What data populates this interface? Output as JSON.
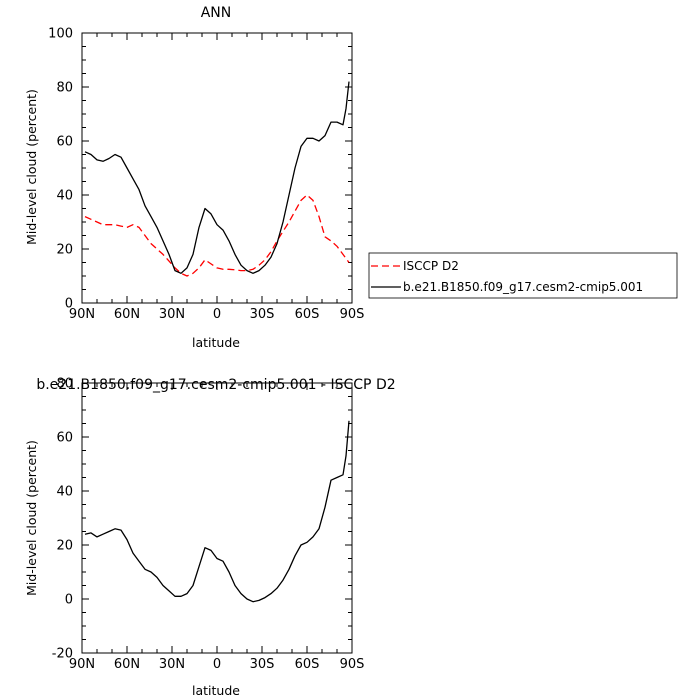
{
  "chart_data": [
    {
      "type": "line",
      "title": "ANN",
      "xlabel": "latitude",
      "ylabel": "Mid-level cloud (percent)",
      "xlim": [
        90,
        -90
      ],
      "ylim": [
        0,
        100
      ],
      "x_ticks": [
        90,
        60,
        30,
        0,
        -30,
        -60,
        -90
      ],
      "x_tick_labels": [
        "90N",
        "60N",
        "30N",
        "0",
        "30S",
        "60S",
        "90S"
      ],
      "y_ticks": [
        0,
        20,
        40,
        60,
        80,
        100
      ],
      "y_tick_labels": [
        "0",
        "20",
        "40",
        "60",
        "80",
        "100"
      ],
      "legend_position": "right",
      "series": [
        {
          "name": "ISCCP D2",
          "color": "#ff0000",
          "style": "dashed",
          "x": [
            88,
            84,
            80,
            76,
            72,
            68,
            64,
            60,
            56,
            52,
            48,
            44,
            40,
            36,
            32,
            28,
            24,
            20,
            16,
            12,
            8,
            4,
            0,
            -4,
            -8,
            -12,
            -16,
            -20,
            -24,
            -28,
            -32,
            -36,
            -40,
            -44,
            -48,
            -52,
            -56,
            -60,
            -64,
            -68,
            -72,
            -76,
            -80,
            -84,
            -88
          ],
          "y": [
            32,
            31,
            30,
            29,
            29,
            29,
            28.5,
            28,
            29,
            28,
            25,
            22,
            20,
            18,
            15.5,
            13,
            11,
            10,
            11,
            13,
            16,
            14.5,
            13,
            12.5,
            12.5,
            12.3,
            12,
            12,
            12.5,
            14,
            16,
            19,
            23,
            26.5,
            30,
            34,
            38,
            40,
            38,
            32,
            24.5,
            23,
            21,
            18,
            15
          ]
        },
        {
          "name": "b.e21.B1850.f09_g17.cesm2-cmip5.001",
          "color": "#000000",
          "style": "solid",
          "x": [
            88,
            84,
            80,
            76,
            72,
            68,
            64,
            60,
            56,
            52,
            48,
            44,
            40,
            36,
            32,
            28,
            24,
            20,
            16,
            12,
            8,
            4,
            0,
            -4,
            -8,
            -12,
            -16,
            -20,
            -24,
            -28,
            -32,
            -36,
            -40,
            -44,
            -48,
            -52,
            -56,
            -60,
            -64,
            -68,
            -72,
            -76,
            -80,
            -84,
            -86,
            -88
          ],
          "y": [
            56,
            55,
            53,
            52.5,
            53.5,
            55,
            54,
            50,
            46,
            42,
            36,
            32,
            28,
            23,
            18,
            12,
            11,
            13,
            18,
            28,
            35,
            33,
            29,
            27,
            23,
            18,
            14,
            12,
            11,
            12,
            14,
            17,
            22,
            30,
            40,
            50,
            58,
            61,
            61,
            60,
            62,
            67,
            67,
            66,
            72,
            82
          ]
        }
      ]
    },
    {
      "type": "line",
      "title": "b.e21.B1850.f09_g17.cesm2-cmip5.001 - ISCCP D2",
      "xlabel": "latitude",
      "ylabel": "Mid-level cloud (percent)",
      "xlim": [
        90,
        -90
      ],
      "ylim": [
        -20,
        80
      ],
      "x_ticks": [
        90,
        60,
        30,
        0,
        -30,
        -60,
        -90
      ],
      "x_tick_labels": [
        "90N",
        "60N",
        "30N",
        "0",
        "30S",
        "60S",
        "90S"
      ],
      "y_ticks": [
        -20,
        0,
        20,
        40,
        60,
        80
      ],
      "y_tick_labels": [
        "-20",
        "0",
        "20",
        "40",
        "60",
        "80"
      ],
      "series": [
        {
          "color": "#000000",
          "style": "solid",
          "x": [
            88,
            84,
            80,
            76,
            72,
            68,
            64,
            60,
            56,
            52,
            48,
            44,
            40,
            36,
            32,
            28,
            24,
            20,
            16,
            12,
            8,
            4,
            0,
            -4,
            -8,
            -12,
            -16,
            -20,
            -24,
            -28,
            -32,
            -36,
            -40,
            -44,
            -48,
            -52,
            -56,
            -60,
            -64,
            -68,
            -72,
            -76,
            -80,
            -84,
            -86,
            -88
          ],
          "y": [
            24,
            24.5,
            23,
            24,
            25,
            26,
            25.5,
            22,
            17,
            14,
            11,
            10,
            8,
            5,
            3,
            1,
            1,
            2,
            5,
            12,
            19,
            18,
            15,
            14,
            10,
            5,
            2,
            0,
            -1,
            -0.5,
            0.5,
            2,
            4,
            7,
            11,
            16,
            20,
            21,
            23,
            26,
            34,
            44,
            45,
            46,
            53,
            66
          ]
        }
      ]
    }
  ]
}
